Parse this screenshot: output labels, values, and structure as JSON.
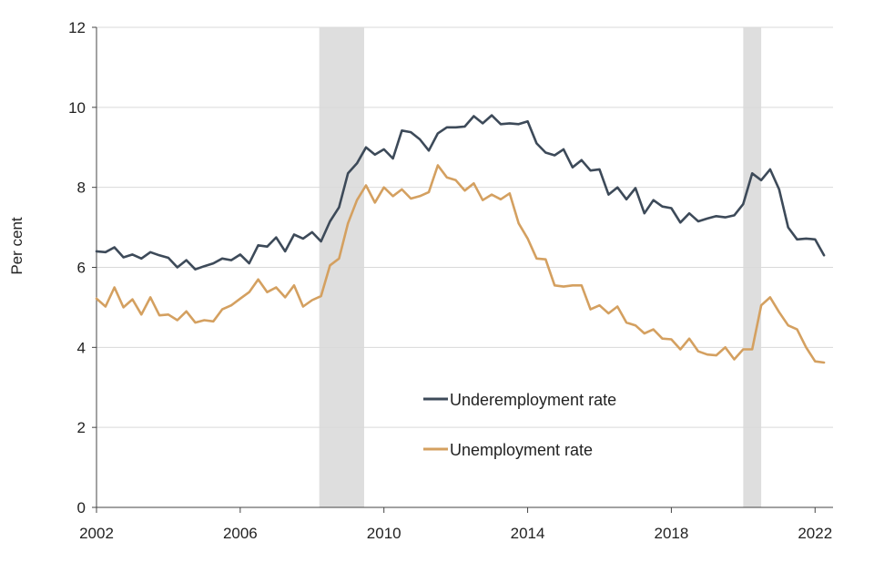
{
  "chart_data": {
    "type": "line",
    "ylabel": "Per cent",
    "xlabel": "",
    "title": "",
    "xlim": [
      2002,
      2022.5
    ],
    "ylim": [
      0,
      12
    ],
    "x_ticks": [
      2002,
      2006,
      2010,
      2014,
      2018,
      2022
    ],
    "y_ticks": [
      0,
      2,
      4,
      6,
      8,
      10,
      12
    ],
    "grid": "horizontal",
    "legend_position": "inside-bottom-center",
    "shaded_periods": [
      {
        "start": 2008.2,
        "end": 2009.45
      },
      {
        "start": 2020.0,
        "end": 2020.5
      }
    ],
    "series": [
      {
        "name": "Underemployment rate",
        "color": "#3d4a59",
        "x": [
          2002,
          2002.25,
          2002.5,
          2002.75,
          2003,
          2003.25,
          2003.5,
          2003.75,
          2004,
          2004.25,
          2004.5,
          2004.75,
          2005,
          2005.25,
          2005.5,
          2005.75,
          2006,
          2006.25,
          2006.5,
          2006.75,
          2007,
          2007.25,
          2007.5,
          2007.75,
          2008,
          2008.25,
          2008.5,
          2008.75,
          2009,
          2009.25,
          2009.5,
          2009.75,
          2010,
          2010.25,
          2010.5,
          2010.75,
          2011,
          2011.25,
          2011.5,
          2011.75,
          2012,
          2012.25,
          2012.5,
          2012.75,
          2013,
          2013.25,
          2013.5,
          2013.75,
          2014,
          2014.25,
          2014.5,
          2014.75,
          2015,
          2015.25,
          2015.5,
          2015.75,
          2016,
          2016.25,
          2016.5,
          2016.75,
          2017,
          2017.25,
          2017.5,
          2017.75,
          2018,
          2018.25,
          2018.5,
          2018.75,
          2019,
          2019.25,
          2019.5,
          2019.75,
          2020,
          2020.25,
          2020.5,
          2020.75,
          2021,
          2021.25,
          2021.5,
          2021.75,
          2022,
          2022.25
        ],
        "values": [
          6.4,
          6.38,
          6.5,
          6.25,
          6.32,
          6.22,
          6.38,
          6.3,
          6.24,
          6.0,
          6.18,
          5.95,
          6.03,
          6.1,
          6.22,
          6.18,
          6.32,
          6.1,
          6.55,
          6.52,
          6.75,
          6.4,
          6.82,
          6.72,
          6.88,
          6.65,
          7.15,
          7.5,
          8.35,
          8.6,
          9.0,
          8.82,
          8.95,
          8.72,
          9.42,
          9.38,
          9.2,
          8.92,
          9.35,
          9.5,
          9.5,
          9.52,
          9.78,
          9.6,
          9.8,
          9.58,
          9.6,
          9.58,
          9.65,
          9.1,
          8.87,
          8.8,
          8.95,
          8.5,
          8.68,
          8.42,
          8.45,
          7.82,
          8.0,
          7.7,
          7.98,
          7.35,
          7.68,
          7.52,
          7.48,
          7.12,
          7.35,
          7.15,
          7.22,
          7.28,
          7.25,
          7.3,
          7.58,
          8.35,
          8.18,
          8.45,
          7.95,
          7.0,
          6.7,
          6.72,
          6.7,
          6.3
        ]
      },
      {
        "name": "Unemployment rate",
        "color": "#d4a060",
        "x": [
          2002,
          2002.25,
          2002.5,
          2002.75,
          2003,
          2003.25,
          2003.5,
          2003.75,
          2004,
          2004.25,
          2004.5,
          2004.75,
          2005,
          2005.25,
          2005.5,
          2005.75,
          2006,
          2006.25,
          2006.5,
          2006.75,
          2007,
          2007.25,
          2007.5,
          2007.75,
          2008,
          2008.25,
          2008.5,
          2008.75,
          2009,
          2009.25,
          2009.5,
          2009.75,
          2010,
          2010.25,
          2010.5,
          2010.75,
          2011,
          2011.25,
          2011.5,
          2011.75,
          2012,
          2012.25,
          2012.5,
          2012.75,
          2013,
          2013.25,
          2013.5,
          2013.75,
          2014,
          2014.25,
          2014.5,
          2014.75,
          2015,
          2015.25,
          2015.5,
          2015.75,
          2016,
          2016.25,
          2016.5,
          2016.75,
          2017,
          2017.25,
          2017.5,
          2017.75,
          2018,
          2018.25,
          2018.5,
          2018.75,
          2019,
          2019.25,
          2019.5,
          2019.75,
          2020,
          2020.25,
          2020.5,
          2020.75,
          2021,
          2021.25,
          2021.5,
          2021.75,
          2022,
          2022.25
        ],
        "values": [
          5.22,
          5.02,
          5.5,
          5.0,
          5.2,
          4.82,
          5.25,
          4.8,
          4.82,
          4.68,
          4.9,
          4.62,
          4.68,
          4.65,
          4.95,
          5.05,
          5.22,
          5.38,
          5.7,
          5.38,
          5.5,
          5.25,
          5.55,
          5.02,
          5.18,
          5.28,
          6.05,
          6.22,
          7.1,
          7.68,
          8.05,
          7.62,
          8.0,
          7.78,
          7.95,
          7.72,
          7.78,
          7.88,
          8.55,
          8.25,
          8.18,
          7.92,
          8.1,
          7.68,
          7.82,
          7.7,
          7.85,
          7.1,
          6.72,
          6.22,
          6.2,
          5.55,
          5.52,
          5.55,
          5.55,
          4.95,
          5.05,
          4.85,
          5.02,
          4.62,
          4.55,
          4.35,
          4.45,
          4.22,
          4.2,
          3.95,
          4.22,
          3.9,
          3.82,
          3.8,
          4.0,
          3.7,
          3.95,
          3.95,
          5.05,
          5.25,
          4.88,
          4.55,
          4.45,
          4.0,
          3.65,
          3.62
        ]
      }
    ]
  }
}
